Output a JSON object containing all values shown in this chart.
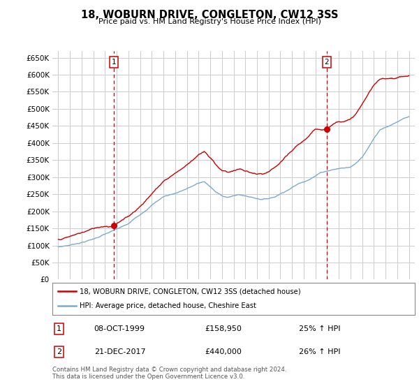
{
  "title": "18, WOBURN DRIVE, CONGLETON, CW12 3SS",
  "subtitle": "Price paid vs. HM Land Registry's House Price Index (HPI)",
  "legend_line1": "18, WOBURN DRIVE, CONGLETON, CW12 3SS (detached house)",
  "legend_line2": "HPI: Average price, detached house, Cheshire East",
  "footnote": "Contains HM Land Registry data © Crown copyright and database right 2024.\nThis data is licensed under the Open Government Licence v3.0.",
  "transaction1_date": "08-OCT-1999",
  "transaction1_price": "£158,950",
  "transaction1_hpi": "25% ↑ HPI",
  "transaction2_date": "21-DEC-2017",
  "transaction2_price": "£440,000",
  "transaction2_hpi": "26% ↑ HPI",
  "ylim": [
    0,
    670000
  ],
  "yticks": [
    0,
    50000,
    100000,
    150000,
    200000,
    250000,
    300000,
    350000,
    400000,
    450000,
    500000,
    550000,
    600000,
    650000
  ],
  "price_line_color": "#cc0000",
  "hpi_line_color": "#7aabcf",
  "vline_color": "#cc0000",
  "background_color": "#ffffff",
  "grid_color": "#cccccc",
  "transaction1_x": 1999.77,
  "transaction1_y": 158950,
  "transaction2_x": 2017.97,
  "transaction2_y": 440000,
  "xlim_left": 1994.5,
  "xlim_right": 2025.5
}
